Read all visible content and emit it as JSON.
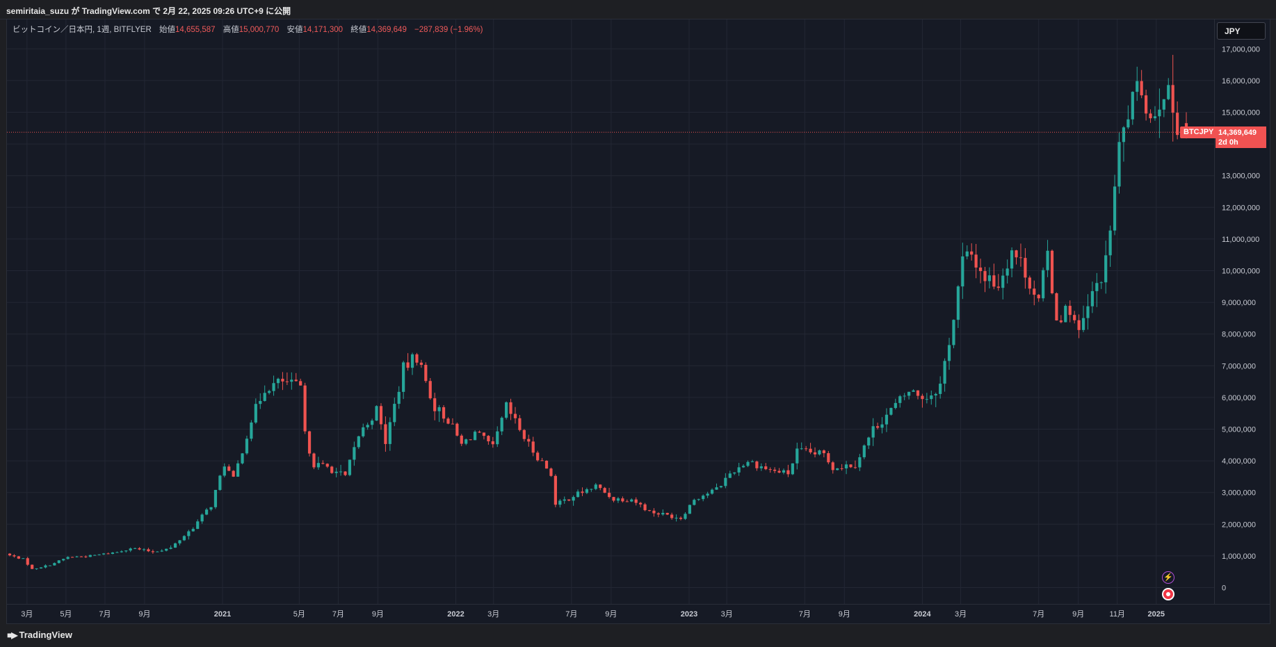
{
  "header": {
    "title": "semiritaia_suzu が TradingView.com で 2月 22, 2025 09:26 UTC+9 に公開"
  },
  "legend": {
    "symbol": "ビットコイン／日本円, 1週, BITFLYER",
    "open_label": "始値",
    "open": "14,655,587",
    "high_label": "高値",
    "high": "15,000,770",
    "low_label": "安値",
    "low": "14,171,300",
    "close_label": "終値",
    "close": "14,369,649",
    "change": "−287,839 (−1.96%)"
  },
  "currency_button": "JPY",
  "price_tag": {
    "symbol": "BTCJPY",
    "price": "14,369,649",
    "countdown": "2d 0h"
  },
  "footer": {
    "brand": "TradingView"
  },
  "icons": [
    "bolt-icon",
    "record-icon"
  ],
  "colors": {
    "up": "#26a69a",
    "down": "#ef5350",
    "background": "#161a25",
    "price_line": "#f05252"
  },
  "chart_data": {
    "type": "candlestick",
    "title": "ビットコイン／日本円, 1週, BITFLYER",
    "y_ticks": [
      0,
      1000000,
      2000000,
      3000000,
      4000000,
      5000000,
      6000000,
      7000000,
      8000000,
      9000000,
      10000000,
      11000000,
      12000000,
      13000000,
      14000000,
      15000000,
      16000000,
      17000000
    ],
    "y_tick_labels": [
      "0",
      "1,000,000",
      "2,000,000",
      "3,000,000",
      "4,000,000",
      "5,000,000",
      "6,000,000",
      "7,000,000",
      "8,000,000",
      "9,000,000",
      "10,000,000",
      "11,000,000",
      "12,000,000",
      "13,000,000",
      "14,000,000",
      "15,000,000",
      "16,000,000",
      "17,000,000"
    ],
    "ylim": [
      -500000,
      17500000
    ],
    "x_tick_labels": [
      {
        "label": "3月",
        "date": "2020-03"
      },
      {
        "label": "5月",
        "date": "2020-05"
      },
      {
        "label": "7月",
        "date": "2020-07"
      },
      {
        "label": "9月",
        "date": "2020-09"
      },
      {
        "label": "2021",
        "date": "2021-01"
      },
      {
        "label": "5月",
        "date": "2021-05"
      },
      {
        "label": "7月",
        "date": "2021-07"
      },
      {
        "label": "9月",
        "date": "2021-09"
      },
      {
        "label": "2022",
        "date": "2022-01"
      },
      {
        "label": "3月",
        "date": "2022-03"
      },
      {
        "label": "7月",
        "date": "2022-07"
      },
      {
        "label": "9月",
        "date": "2022-09"
      },
      {
        "label": "2023",
        "date": "2023-01"
      },
      {
        "label": "3月",
        "date": "2023-03"
      },
      {
        "label": "7月",
        "date": "2023-07"
      },
      {
        "label": "9月",
        "date": "2023-09"
      },
      {
        "label": "2024",
        "date": "2024-01"
      },
      {
        "label": "3月",
        "date": "2024-03"
      },
      {
        "label": "7月",
        "date": "2024-07"
      },
      {
        "label": "9月",
        "date": "2024-09"
      },
      {
        "label": "11月",
        "date": "2024-11"
      },
      {
        "label": "2025",
        "date": "2025-01"
      }
    ],
    "anchors": [
      [
        "2020-02-03",
        1050000
      ],
      [
        "2020-03-02",
        900000
      ],
      [
        "2020-03-16",
        580000
      ],
      [
        "2020-04-13",
        720000
      ],
      [
        "2020-05-11",
        960000
      ],
      [
        "2020-06-15",
        1000000
      ],
      [
        "2020-07-27",
        1120000
      ],
      [
        "2020-08-17",
        1250000
      ],
      [
        "2020-09-21",
        1130000
      ],
      [
        "2020-10-19",
        1250000
      ],
      [
        "2020-11-23",
        1900000
      ],
      [
        "2020-12-21",
        2600000
      ],
      [
        "2021-01-11",
        3900000
      ],
      [
        "2021-01-25",
        3400000
      ],
      [
        "2021-02-22",
        5300000
      ],
      [
        "2021-03-15",
        6300000
      ],
      [
        "2021-04-12",
        6500000
      ],
      [
        "2021-05-10",
        6300000
      ],
      [
        "2021-05-17",
        4800000
      ],
      [
        "2021-05-31",
        3900000
      ],
      [
        "2021-06-21",
        3800000
      ],
      [
        "2021-07-19",
        3500000
      ],
      [
        "2021-08-09",
        4800000
      ],
      [
        "2021-09-06",
        5600000
      ],
      [
        "2021-09-20",
        4600000
      ],
      [
        "2021-10-18",
        6900000
      ],
      [
        "2021-11-08",
        7300000
      ],
      [
        "2021-12-06",
        5700000
      ],
      [
        "2021-12-27",
        5300000
      ],
      [
        "2022-01-17",
        4500000
      ],
      [
        "2022-02-07",
        4900000
      ],
      [
        "2022-03-07",
        4400000
      ],
      [
        "2022-03-28",
        5700000
      ],
      [
        "2022-05-02",
        4500000
      ],
      [
        "2022-06-06",
        3600000
      ],
      [
        "2022-06-13",
        2600000
      ],
      [
        "2022-07-11",
        2900000
      ],
      [
        "2022-08-15",
        3200000
      ],
      [
        "2022-09-12",
        2800000
      ],
      [
        "2022-10-10",
        2800000
      ],
      [
        "2022-11-07",
        2400000
      ],
      [
        "2022-12-26",
        2200000
      ],
      [
        "2023-01-16",
        2800000
      ],
      [
        "2023-02-20",
        3100000
      ],
      [
        "2023-03-13",
        3600000
      ],
      [
        "2023-04-10",
        4000000
      ],
      [
        "2023-05-15",
        3700000
      ],
      [
        "2023-06-12",
        3600000
      ],
      [
        "2023-06-26",
        4300000
      ],
      [
        "2023-08-07",
        4200000
      ],
      [
        "2023-08-21",
        3800000
      ],
      [
        "2023-09-25",
        3900000
      ],
      [
        "2023-10-23",
        5000000
      ],
      [
        "2023-11-20",
        5600000
      ],
      [
        "2023-12-18",
        6200000
      ],
      [
        "2024-01-15",
        6000000
      ],
      [
        "2024-02-05",
        6400000
      ],
      [
        "2024-02-26",
        8500000
      ],
      [
        "2024-03-11",
        10300000
      ],
      [
        "2024-03-25",
        10500000
      ],
      [
        "2024-04-15",
        9800000
      ],
      [
        "2024-05-06",
        9600000
      ],
      [
        "2024-05-27",
        10700000
      ],
      [
        "2024-06-17",
        10000000
      ],
      [
        "2024-07-08",
        9000000
      ],
      [
        "2024-07-22",
        10500000
      ],
      [
        "2024-08-05",
        8500000
      ],
      [
        "2024-08-26",
        8800000
      ],
      [
        "2024-09-09",
        8000000
      ],
      [
        "2024-09-30",
        9200000
      ],
      [
        "2024-10-21",
        10200000
      ],
      [
        "2024-11-11",
        13800000
      ],
      [
        "2024-11-25",
        15000000
      ],
      [
        "2024-12-16",
        15800000
      ],
      [
        "2024-12-30",
        14800000
      ],
      [
        "2025-01-20",
        15800000
      ],
      [
        "2025-02-10",
        14700000
      ],
      [
        "2025-02-17",
        14369649
      ]
    ],
    "last_candle": {
      "open": 14655587,
      "high": 15000770,
      "low": 14171300,
      "close": 14369649
    },
    "last_price": 14369649
  }
}
